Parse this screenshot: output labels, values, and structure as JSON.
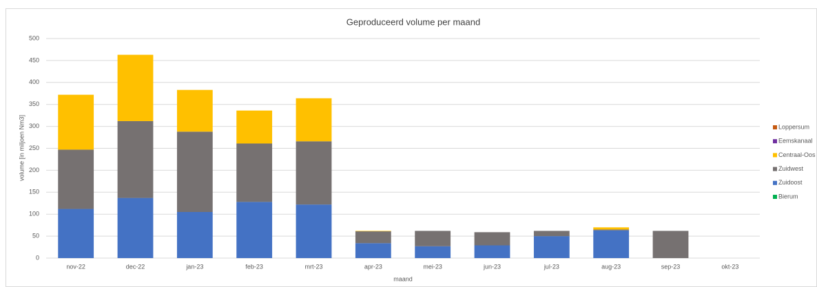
{
  "chart_data": {
    "type": "stacked_bar",
    "title": "Geproduceerd volume per maand",
    "y_label": "volume [in miljoen Nm3]",
    "x_label": "maand",
    "categories": [
      "nov-22",
      "dec-22",
      "jan-23",
      "feb-23",
      "mrt-23",
      "apr-23",
      "mei-23",
      "jun-23",
      "jul-23",
      "aug-23",
      "sep-23",
      "okt-23"
    ],
    "series": [
      {
        "name": "Loppersum",
        "color": "#c55a11",
        "values": [
          0,
          0,
          0,
          0,
          0,
          0,
          0,
          0,
          0,
          0,
          0,
          0
        ]
      },
      {
        "name": "Eemskanaal",
        "color": "#7030a0",
        "values": [
          0,
          0,
          0,
          0,
          0,
          0,
          0,
          0,
          0,
          0,
          0,
          0
        ]
      },
      {
        "name": "Centraal-Oos",
        "color": "#ffc000",
        "values": [
          125,
          151,
          95,
          75,
          98,
          1,
          0,
          0,
          0,
          5,
          0,
          0
        ]
      },
      {
        "name": "Zuidwest",
        "color": "#767171",
        "values": [
          135,
          175,
          183,
          133,
          144,
          27,
          35,
          30,
          12,
          2,
          62,
          0
        ]
      },
      {
        "name": "Zuidoost",
        "color": "#4472c4",
        "values": [
          112,
          137,
          105,
          128,
          122,
          34,
          27,
          29,
          50,
          63,
          0,
          0
        ]
      },
      {
        "name": "Bierum",
        "color": "#00b050",
        "values": [
          0,
          0,
          0,
          0,
          0,
          0,
          0,
          0,
          0,
          0,
          0,
          0
        ]
      }
    ],
    "ylim": [
      0,
      500
    ],
    "yticks": [
      0,
      50,
      100,
      150,
      200,
      250,
      300,
      350,
      400,
      450,
      500
    ],
    "grid": true,
    "legend": "right"
  }
}
